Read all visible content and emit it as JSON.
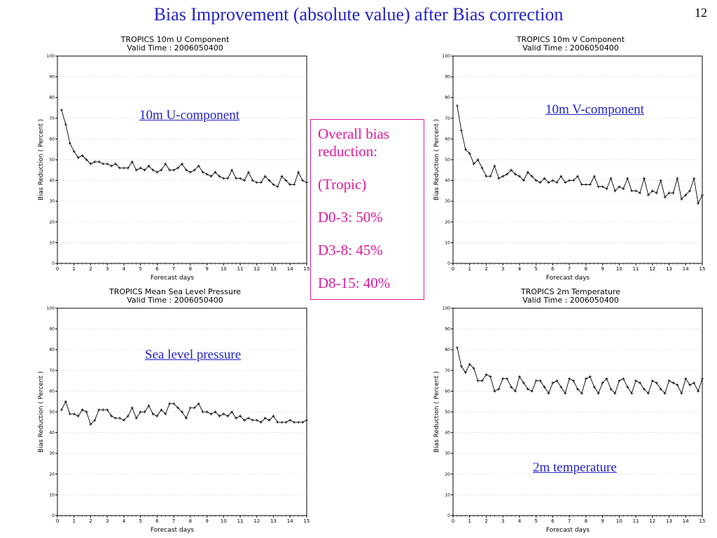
{
  "slide": {
    "title": "Bias Improvement (absolute value) after Bias correction",
    "page_number": "12"
  },
  "callout": {
    "line1": "Overall bias reduction:",
    "line2": "(Tropic)",
    "line3": "D0-3: 50%",
    "line4": "D3-8: 45%",
    "line5": "D8-15: 40%"
  },
  "colors": {
    "title": "#2323c8",
    "annotation": "#2323c8",
    "callout": "#e0199e",
    "line": "#000000"
  },
  "chart_data": [
    {
      "type": "line",
      "title": "TROPICS 10m U Component",
      "subtitle": "Valid Time : 2006050400",
      "xlabel": "Forecast days",
      "ylabel": "Bias Reduction ( Percent )",
      "xlim": [
        0,
        15
      ],
      "ylim": [
        0,
        100
      ],
      "xticks": [
        "0",
        "1",
        "2",
        "3",
        "4",
        "5",
        "6",
        "7",
        "8",
        "9",
        "10",
        "11",
        "12",
        "13",
        "14",
        "15"
      ],
      "yticks": [
        "0",
        "10",
        "20",
        "30",
        "40",
        "50",
        "60",
        "70",
        "80",
        "90",
        "100"
      ],
      "grid": true,
      "annotation": "10m U-component",
      "series": [
        {
          "x": [
            0.25,
            0.5,
            0.75,
            1,
            1.25,
            1.5,
            1.75,
            2,
            2.25,
            2.5,
            2.75,
            3,
            3.25,
            3.5,
            3.75,
            4,
            4.25,
            4.5,
            4.75,
            5,
            5.25,
            5.5,
            5.75,
            6,
            6.25,
            6.5,
            6.75,
            7,
            7.25,
            7.5,
            7.75,
            8,
            8.25,
            8.5,
            8.75,
            9,
            9.25,
            9.5,
            9.75,
            10,
            10.25,
            10.5,
            10.75,
            11,
            11.25,
            11.5,
            11.75,
            12,
            12.25,
            12.5,
            12.75,
            13,
            13.25,
            13.5,
            13.75,
            14,
            14.25,
            14.5,
            14.75,
            15
          ],
          "values": [
            74,
            67,
            58,
            54,
            51,
            52,
            50,
            48,
            49,
            49,
            48,
            48,
            47,
            48,
            46,
            46,
            46,
            49,
            45,
            46,
            45,
            47,
            45,
            44,
            45,
            48,
            45,
            45,
            46,
            48,
            45,
            44,
            45,
            47,
            44,
            43,
            42,
            44,
            42,
            41,
            41,
            45,
            41,
            41,
            40,
            44,
            40,
            39,
            39,
            42,
            40,
            38,
            37,
            42,
            40,
            38,
            38,
            44,
            40,
            39
          ]
        }
      ]
    },
    {
      "type": "line",
      "title": "TROPICS 10m V Component",
      "subtitle": "Valid Time : 2006050400",
      "xlabel": "Forecast days",
      "ylabel": "Bias Reduction ( Percent )",
      "xlim": [
        0,
        15
      ],
      "ylim": [
        0,
        100
      ],
      "xticks": [
        "0",
        "1",
        "2",
        "3",
        "4",
        "5",
        "6",
        "7",
        "8",
        "9",
        "10",
        "11",
        "12",
        "13",
        "14",
        "15"
      ],
      "yticks": [
        "0",
        "10",
        "20",
        "30",
        "40",
        "50",
        "60",
        "70",
        "80",
        "90",
        "100"
      ],
      "grid": true,
      "annotation": "10m V-component",
      "series": [
        {
          "x": [
            0.25,
            0.5,
            0.75,
            1,
            1.25,
            1.5,
            1.75,
            2,
            2.25,
            2.5,
            2.75,
            3,
            3.25,
            3.5,
            3.75,
            4,
            4.25,
            4.5,
            4.75,
            5,
            5.25,
            5.5,
            5.75,
            6,
            6.25,
            6.5,
            6.75,
            7,
            7.25,
            7.5,
            7.75,
            8,
            8.25,
            8.5,
            8.75,
            9,
            9.25,
            9.5,
            9.75,
            10,
            10.25,
            10.5,
            10.75,
            11,
            11.25,
            11.5,
            11.75,
            12,
            12.25,
            12.5,
            12.75,
            13,
            13.25,
            13.5,
            13.75,
            14,
            14.25,
            14.5,
            14.75,
            15
          ],
          "values": [
            76,
            64,
            55,
            53,
            48,
            50,
            46,
            42,
            42,
            47,
            41,
            42,
            43,
            45,
            43,
            42,
            40,
            44,
            42,
            40,
            39,
            41,
            39,
            40,
            39,
            42,
            39,
            40,
            40,
            42,
            38,
            38,
            38,
            42,
            37,
            37,
            36,
            41,
            35,
            37,
            36,
            41,
            35,
            35,
            34,
            41,
            33,
            35,
            34,
            40,
            32,
            34,
            34,
            41,
            31,
            33,
            35,
            41,
            29,
            33
          ]
        }
      ]
    },
    {
      "type": "line",
      "title": "TROPICS Mean Sea Level Pressure",
      "subtitle": "Valid Time : 2006050400",
      "xlabel": "Forecast days",
      "ylabel": "Bias Reduction ( Percent )",
      "xlim": [
        0,
        15
      ],
      "ylim": [
        0,
        100
      ],
      "xticks": [
        "0",
        "1",
        "2",
        "3",
        "4",
        "5",
        "6",
        "7",
        "8",
        "9",
        "10",
        "11",
        "12",
        "13",
        "14",
        "15"
      ],
      "yticks": [
        "0",
        "10",
        "20",
        "30",
        "40",
        "50",
        "60",
        "70",
        "80",
        "90",
        "100"
      ],
      "grid": true,
      "annotation": "Sea level pressure",
      "series": [
        {
          "x": [
            0.25,
            0.5,
            0.75,
            1,
            1.25,
            1.5,
            1.75,
            2,
            2.25,
            2.5,
            2.75,
            3,
            3.25,
            3.5,
            3.75,
            4,
            4.25,
            4.5,
            4.75,
            5,
            5.25,
            5.5,
            5.75,
            6,
            6.25,
            6.5,
            6.75,
            7,
            7.25,
            7.5,
            7.75,
            8,
            8.25,
            8.5,
            8.75,
            9,
            9.25,
            9.5,
            9.75,
            10,
            10.25,
            10.5,
            10.75,
            11,
            11.25,
            11.5,
            11.75,
            12,
            12.25,
            12.5,
            12.75,
            13,
            13.25,
            13.5,
            13.75,
            14,
            14.25,
            14.5,
            14.75,
            15
          ],
          "values": [
            51,
            55,
            49,
            49,
            48,
            51,
            50,
            44,
            46,
            51,
            51,
            51,
            48,
            47,
            47,
            46,
            48,
            52,
            47,
            50,
            50,
            53,
            49,
            48,
            51,
            49,
            54,
            54,
            52,
            50,
            47,
            52,
            52,
            54,
            50,
            50,
            49,
            50,
            48,
            49,
            48,
            50,
            47,
            48,
            46,
            47,
            46,
            46,
            45,
            47,
            46,
            48,
            45,
            45,
            45,
            46,
            45,
            45,
            45,
            46
          ]
        }
      ]
    },
    {
      "type": "line",
      "title": "TROPICS 2m Temperature",
      "subtitle": "Valid Time : 2006050400",
      "xlabel": "Forecast days",
      "ylabel": "Bias Reduction ( Percent )",
      "xlim": [
        0,
        15
      ],
      "ylim": [
        0,
        100
      ],
      "xticks": [
        "0",
        "1",
        "2",
        "3",
        "4",
        "5",
        "6",
        "7",
        "8",
        "9",
        "10",
        "11",
        "12",
        "13",
        "14",
        "15"
      ],
      "yticks": [
        "0",
        "10",
        "20",
        "30",
        "40",
        "50",
        "60",
        "70",
        "80",
        "90",
        "100"
      ],
      "grid": true,
      "annotation": "2m temperature",
      "series": [
        {
          "x": [
            0.25,
            0.5,
            0.75,
            1,
            1.25,
            1.5,
            1.75,
            2,
            2.25,
            2.5,
            2.75,
            3,
            3.25,
            3.5,
            3.75,
            4,
            4.25,
            4.5,
            4.75,
            5,
            5.25,
            5.5,
            5.75,
            6,
            6.25,
            6.5,
            6.75,
            7,
            7.25,
            7.5,
            7.75,
            8,
            8.25,
            8.5,
            8.75,
            9,
            9.25,
            9.5,
            9.75,
            10,
            10.25,
            10.5,
            10.75,
            11,
            11.25,
            11.5,
            11.75,
            12,
            12.25,
            12.5,
            12.75,
            13,
            13.25,
            13.5,
            13.75,
            14,
            14.25,
            14.5,
            14.75,
            15
          ],
          "values": [
            81,
            72,
            69,
            73,
            71,
            65,
            65,
            68,
            67,
            60,
            61,
            66,
            66,
            62,
            60,
            67,
            64,
            61,
            60,
            65,
            65,
            62,
            59,
            64,
            65,
            62,
            59,
            66,
            65,
            61,
            59,
            66,
            67,
            62,
            59,
            64,
            66,
            61,
            59,
            65,
            66,
            62,
            59,
            65,
            64,
            61,
            59,
            65,
            64,
            61,
            59,
            65,
            64,
            63,
            59,
            66,
            63,
            64,
            60,
            66
          ]
        }
      ]
    }
  ]
}
